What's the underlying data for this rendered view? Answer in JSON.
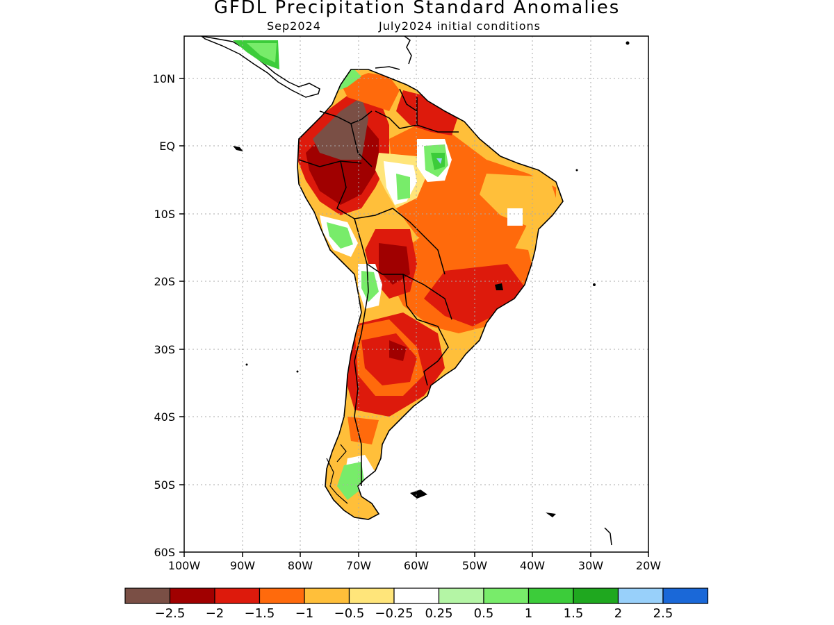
{
  "title": "GFDL Precipitation Standard Anomalies",
  "subtitle_left": "Sep2024",
  "subtitle_right": "July2024 initial conditions",
  "y_ticks": [
    "10N",
    "EQ",
    "10S",
    "20S",
    "30S",
    "40S",
    "50S",
    "60S"
  ],
  "x_ticks": [
    "100W",
    "90W",
    "80W",
    "70W",
    "60W",
    "50W",
    "40W",
    "30W",
    "20W"
  ],
  "colorbar": {
    "colors": [
      "#7a4f45",
      "#a00000",
      "#dd1a0c",
      "#ff6a0c",
      "#ffbf3a",
      "#ffe57a",
      "#ffffff",
      "#b4f5a5",
      "#78ec6a",
      "#3ccc3a",
      "#1fa81f",
      "#98d0fa",
      "#1a68d8"
    ],
    "labels": [
      "-2.5",
      "-2",
      "-1.5",
      "-1",
      "-0.5",
      "-0.25",
      "0.25",
      "0.5",
      "1",
      "1.5",
      "2",
      "2.5"
    ]
  }
}
